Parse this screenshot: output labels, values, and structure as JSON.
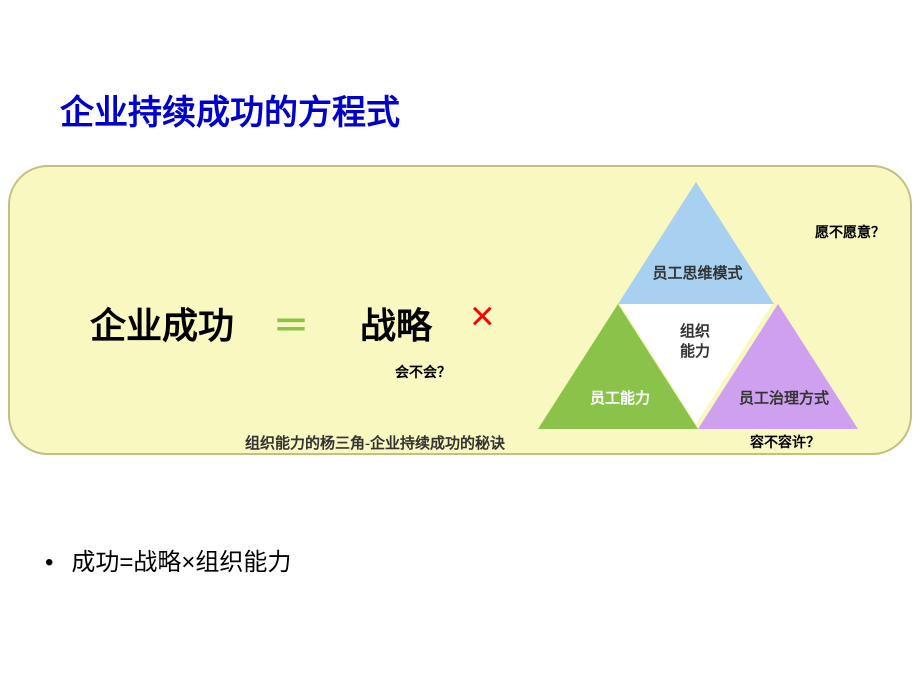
{
  "title": "企业持续成功的方程式",
  "equation": {
    "success": "企业成功",
    "equals": "＝",
    "strategy": "战略",
    "times": "×"
  },
  "triangles": {
    "top": {
      "label": "员工思维模式",
      "fill": "#a8d0f0"
    },
    "middle": {
      "label_line1": "组织",
      "label_line2": "能力",
      "fill": "#ffffff"
    },
    "left": {
      "label": "员工能力",
      "fill": "#8bc34a"
    },
    "right": {
      "label": "员工治理方式",
      "fill": "#d0a0f0"
    }
  },
  "annotations": {
    "top": "愿不愿意？",
    "left": "会不会？",
    "right": "容不容许？"
  },
  "caption": "组织能力的杨三角-企业持续成功的秘诀",
  "bullet": {
    "marker": "•",
    "text": "成功=战略×组织能力"
  },
  "colors": {
    "title": "#0000cc",
    "box_bg": "#f8f8c0",
    "box_border": "#c0c080",
    "equals_color": "#8bc34a",
    "times_color": "#ff0000"
  }
}
